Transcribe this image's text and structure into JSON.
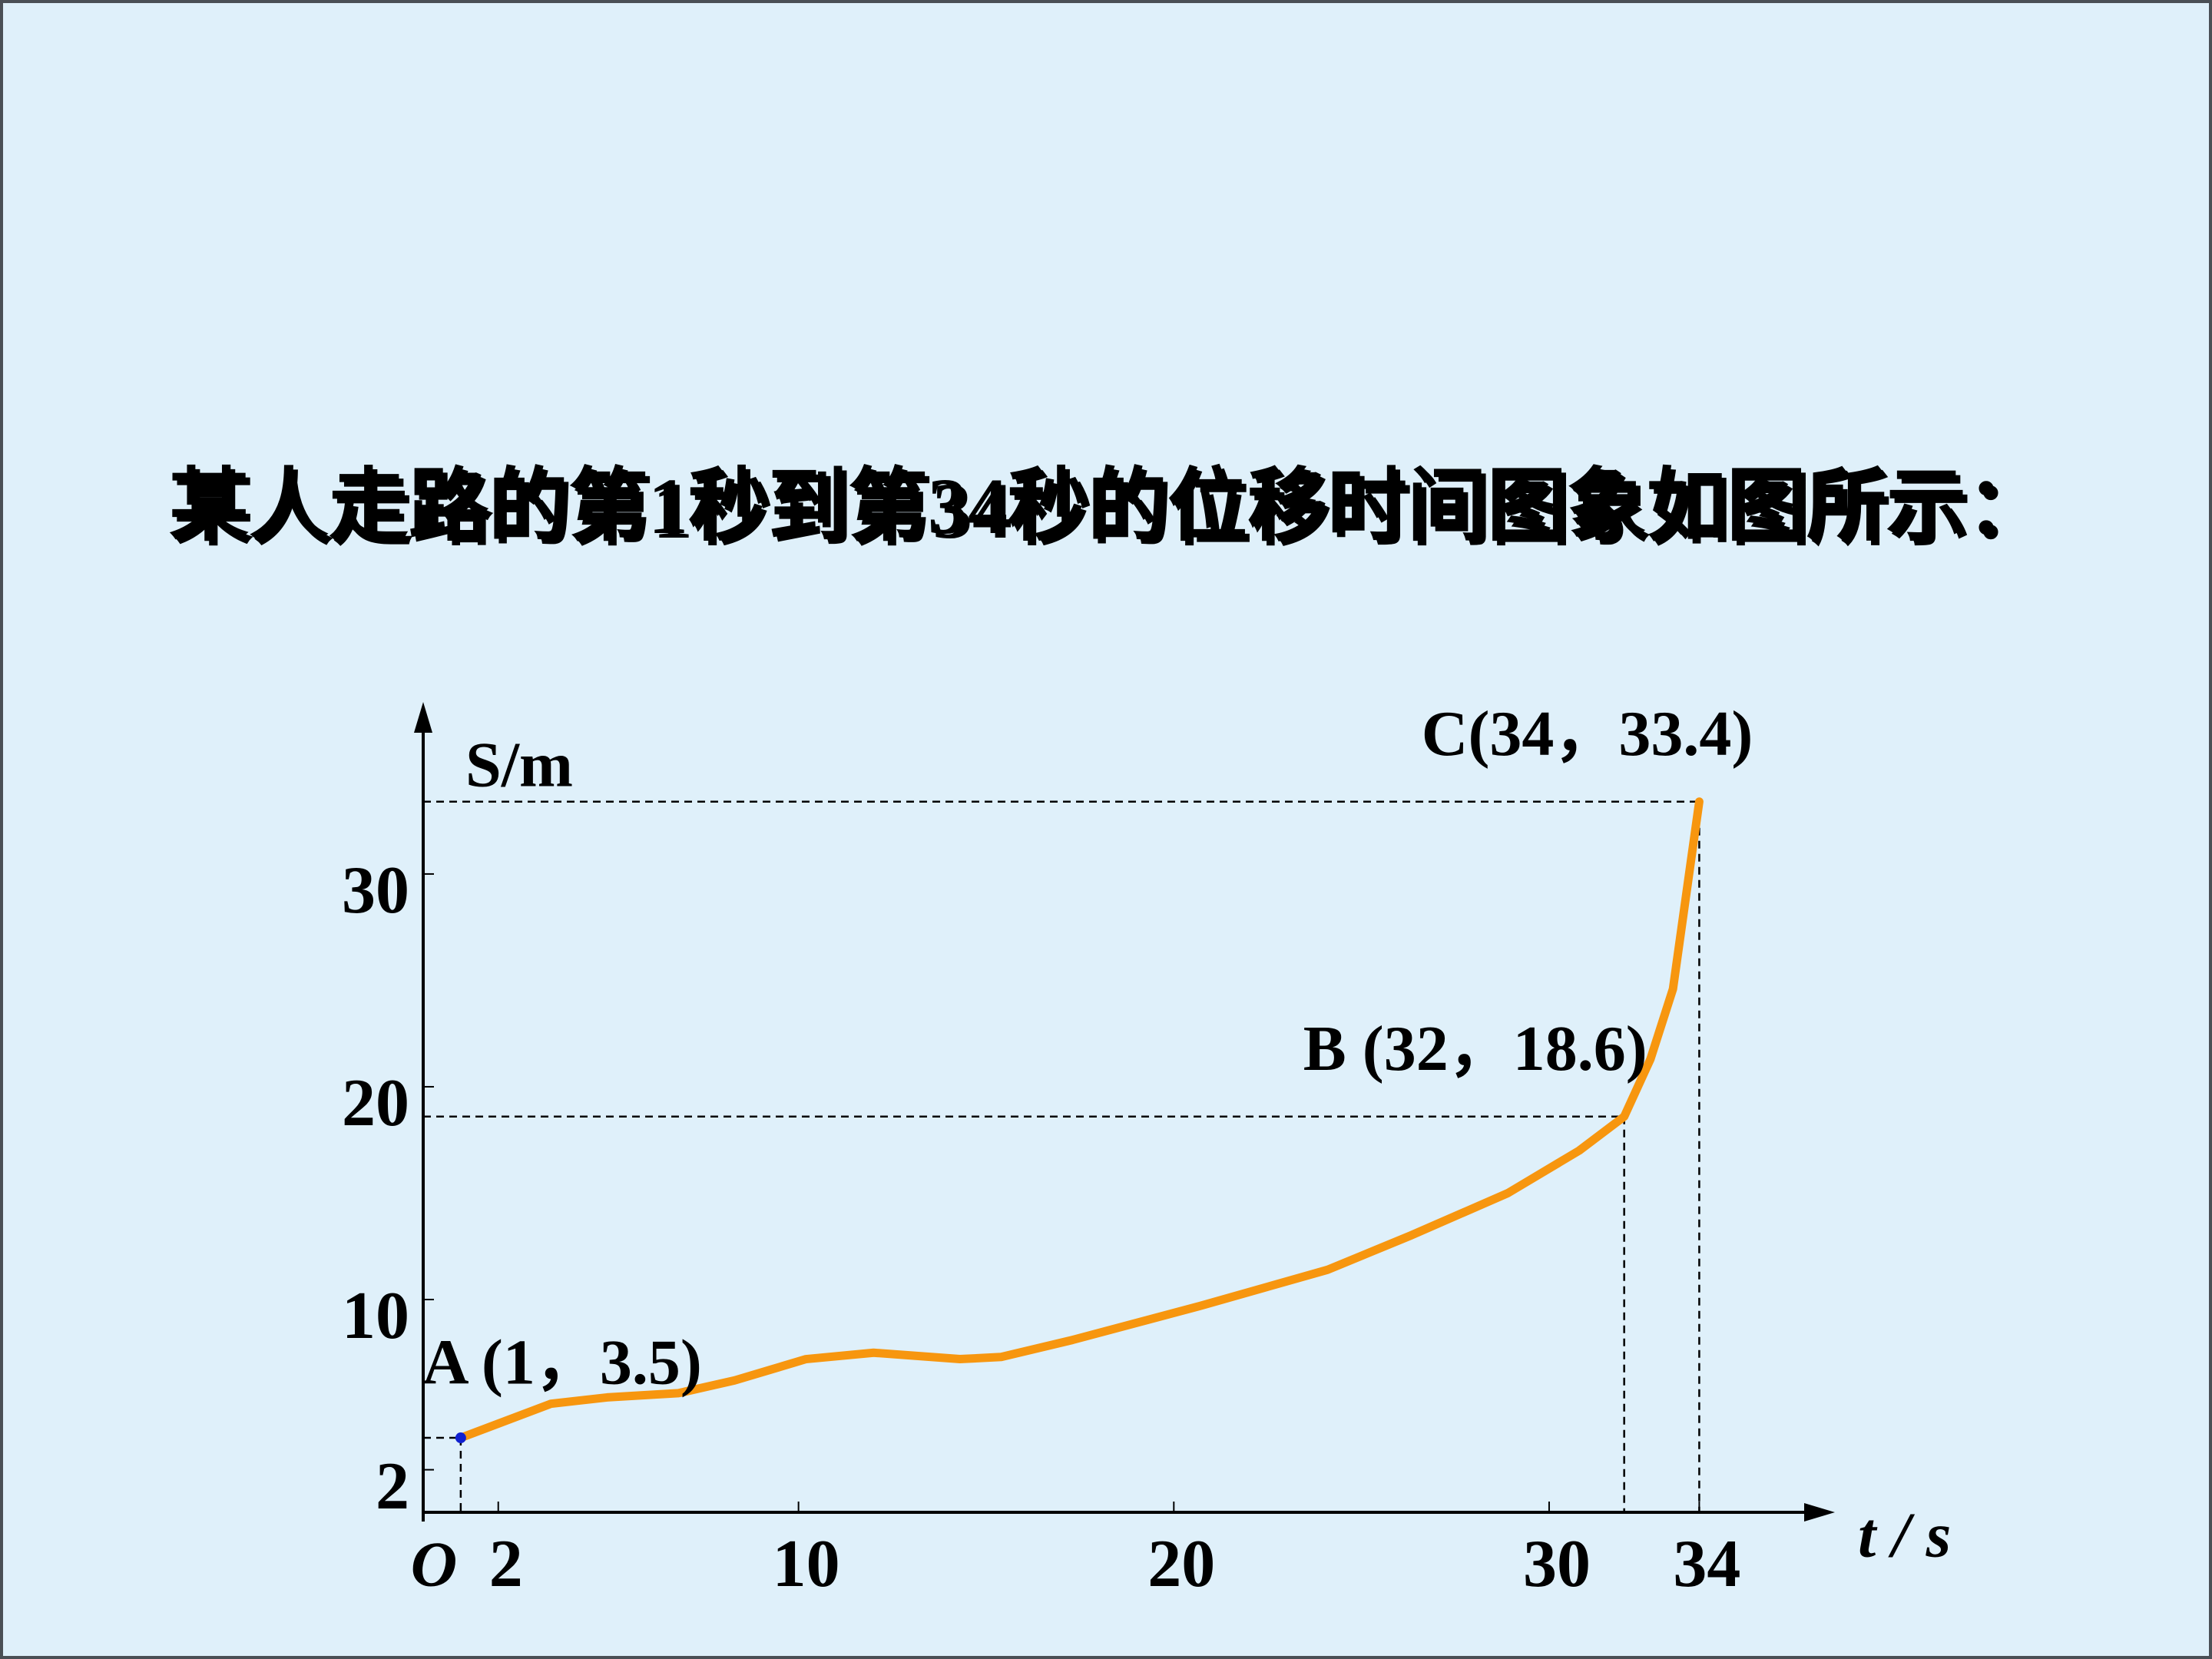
{
  "chart_data": {
    "type": "line",
    "title": "某人走路的第1秒到第34秒的位移时间图象如图所示：",
    "x_label": "t / s",
    "y_label": "S/m",
    "origin_label": "O",
    "x": [
      1,
      3.4,
      4.9,
      6.8,
      8.3,
      10.2,
      12,
      14.3,
      15.4,
      17.3,
      20.7,
      24.1,
      26.3,
      28.9,
      30.8,
      32,
      32.7,
      33.3,
      34
    ],
    "series": [
      {
        "color": "#f7960f",
        "values": [
          3.5,
          5.1,
          5.4,
          5.6,
          6.2,
          7.2,
          7.5,
          7.2,
          7.3,
          8.1,
          9.7,
          11.4,
          13.0,
          15.0,
          17.0,
          18.6,
          21.3,
          24.6,
          33.4
        ]
      }
    ],
    "annotations": [
      {
        "label": "A (1，3.5)",
        "x": 1,
        "y": 3.5
      },
      {
        "label": "B (32，18.6)",
        "x": 32,
        "y": 18.6
      },
      {
        "label": "C(34，33.4)",
        "x": 34,
        "y": 33.4
      }
    ],
    "xlim": [
      0,
      37
    ],
    "ylim": [
      0,
      37
    ],
    "xticks": [
      2,
      10,
      20,
      30,
      34
    ],
    "yticks": [
      2,
      10,
      20,
      30
    ]
  }
}
